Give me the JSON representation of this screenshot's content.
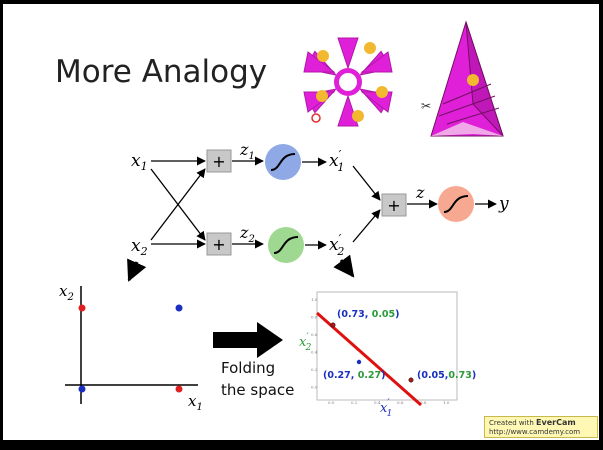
{
  "slide": {
    "title": "More Analogy",
    "folding_text_line1": "Folding",
    "folding_text_line2": "the space"
  },
  "network": {
    "input1": "x",
    "input1_sub": "1",
    "input2": "x",
    "input2_sub": "2",
    "plus": "+",
    "z1": "z",
    "z1_sub": "1",
    "z2": "z",
    "z2_sub": "2",
    "out1": "x",
    "out1_sub": "1",
    "out1_prime": "′",
    "out2": "x",
    "out2_sub": "2",
    "out2_prime": "′",
    "z": "z",
    "y": "y"
  },
  "left_plot": {
    "ylabel": "x",
    "ylabel_sub": "2",
    "xlabel": "x",
    "xlabel_sub": "1",
    "points": [
      {
        "x": 0,
        "y": 1,
        "color": "#e02020"
      },
      {
        "x": 1,
        "y": 1,
        "color": "#1a2fc0"
      },
      {
        "x": 0,
        "y": 0,
        "color": "#1a2fc0"
      },
      {
        "x": 1,
        "y": 0,
        "color": "#e02020"
      }
    ]
  },
  "right_plot": {
    "xlabel": "x",
    "xlabel_sub": "1",
    "xlabel_prime": "′",
    "ylabel": "x",
    "ylabel_sub": "2",
    "ylabel_prime": "′",
    "ann1_a": "(0.73, ",
    "ann1_b": "0.05",
    "ann1_c": ")",
    "ann2_a": "(0.27, ",
    "ann2_b": "0.27",
    "ann2_c": ")",
    "ann3_a": "(0.05,",
    "ann3_b": "0.73",
    "ann3_c": ")",
    "yticks": [
      "1.0",
      "0.8",
      "0.6",
      "0.4",
      "0.2",
      "0.0"
    ],
    "xticks": [
      "0.0",
      "0.2",
      "0.4",
      "0.6",
      "0.8",
      "1.0"
    ]
  },
  "colors": {
    "blue_text": "#1a2fc0",
    "green_text": "#2a9a3a",
    "red_line": "#e01010",
    "sigmoid_blue": "#8fa8e6",
    "sigmoid_green": "#9fd890",
    "sigmoid_orange": "#f6a890",
    "magenta": "#e020d8"
  },
  "watermark": {
    "line1_prefix": "Created with ",
    "line1_brand": "EverCam",
    "line2": "http://www.camdemy.com"
  }
}
